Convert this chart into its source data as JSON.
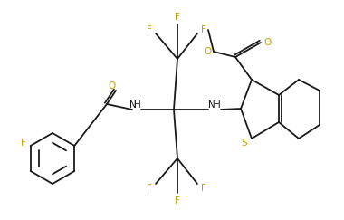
{
  "bg_color": "#ffffff",
  "line_color": "#1a1a1a",
  "line_width": 1.3,
  "text_color": "#1a1a1a",
  "atom_color": "#c8a000",
  "figsize": [
    3.8,
    2.43
  ],
  "dpi": 100,
  "xlim": [
    0,
    380
  ],
  "ylim": [
    0,
    243
  ]
}
